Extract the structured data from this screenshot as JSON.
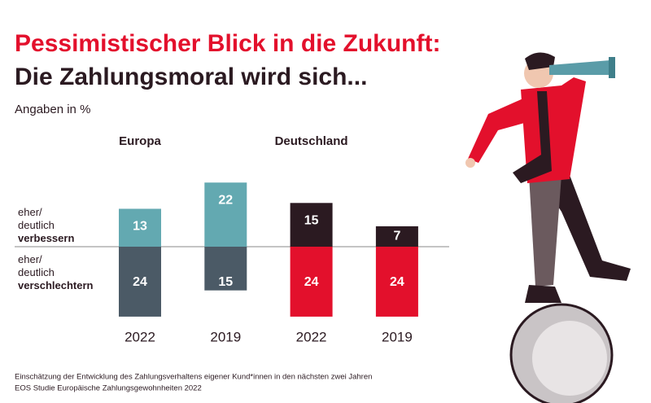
{
  "chart_data": {
    "type": "diverging-bar",
    "title": "Pessimistischer Blick in die Zukunft:",
    "subtitle": "Die Zahlungsmoral wird sich...",
    "unit_note": "Angaben in %",
    "groups": [
      "Europa",
      "Deutschland"
    ],
    "categories": [
      "2022",
      "2019",
      "2022",
      "2019"
    ],
    "series": [
      {
        "name": "eher/ deutlich verbessern",
        "direction": "up",
        "colors": [
          "#63a9b1",
          "#63a9b1",
          "#2b1a21",
          "#2b1a21"
        ],
        "values": [
          13,
          22,
          15,
          7
        ]
      },
      {
        "name": "eher/ deutlich verschlechtern",
        "direction": "down",
        "colors": [
          "#4b5a66",
          "#4b5a66",
          "#e3102c",
          "#e3102c"
        ],
        "values": [
          24,
          15,
          24,
          24
        ]
      }
    ],
    "footnotes": [
      "Einschätzung der Entwicklung des Zahlungsverhaltens eigener Kund*innen in den nächsten zwei Jahren",
      "EOS Studie Europäische Zahlungsgewohnheiten 2022"
    ]
  }
}
